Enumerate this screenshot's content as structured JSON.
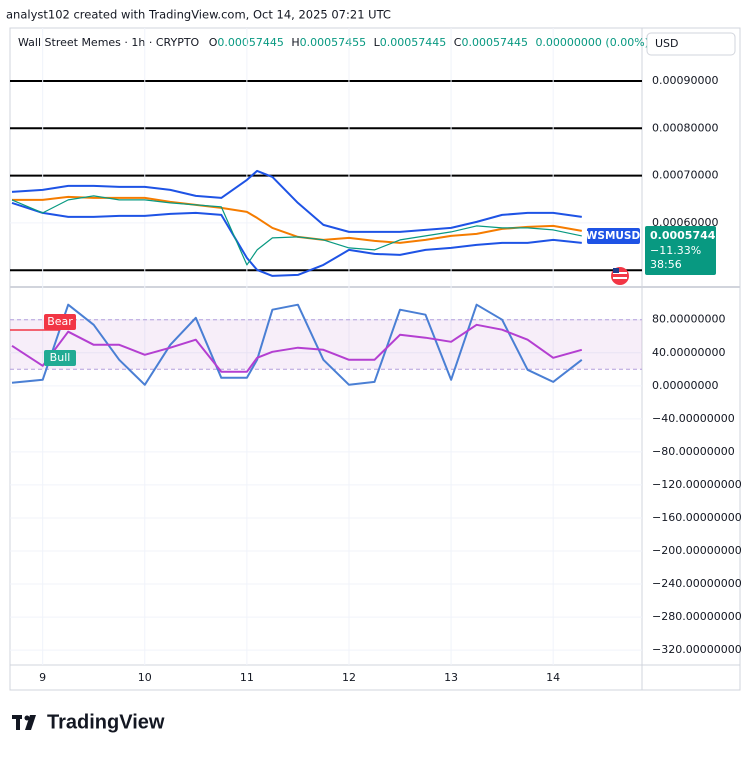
{
  "header": {
    "caption": "analyst102 created with TradingView.com, Oct 14, 2025 07:21 UTC",
    "symbol": "Wall Street Memes · 1h · CRYPTO",
    "ohlc": [
      {
        "label": "O",
        "value": "0.00057445"
      },
      {
        "label": "H",
        "value": "0.00057455"
      },
      {
        "label": "L",
        "value": "0.00057445"
      },
      {
        "label": "C",
        "value": "0.00057445"
      }
    ],
    "change": "0.00000000 (0.00%)",
    "currency": "USD"
  },
  "price_tag": {
    "symbol": "WSMUSD",
    "price": "0.00057445",
    "change": "−11.33%",
    "countdown": "38:56"
  },
  "chart_data": [
    {
      "type": "line",
      "xlim": [
        8.68,
        14.87
      ],
      "ylim": [
        0.000473,
        0.001012
      ],
      "yticks": [
        {
          "value": 0.0006,
          "label": "0.00060000"
        },
        {
          "value": 0.0007,
          "label": "0.00070000"
        },
        {
          "value": 0.0008,
          "label": "0.00080000"
        },
        {
          "value": 0.0009,
          "label": "0.00090000"
        }
      ],
      "levels": [
        0.0009,
        0.0008,
        0.0007,
        0.0005
      ],
      "grid": true,
      "x": [
        8.7,
        9,
        9.25,
        9.5,
        9.75,
        10,
        10.25,
        10.5,
        10.75,
        11,
        11.1,
        11.25,
        11.5,
        11.75,
        12,
        12.25,
        12.5,
        12.75,
        13,
        13.25,
        13.5,
        13.75,
        14,
        14.28
      ],
      "series": [
        {
          "color": "#1e53e5",
          "values": [
            0.00066553,
            0.00066976,
            0.00067822,
            0.00067822,
            0.0006761,
            0.0006761,
            0.00066976,
            0.00065708,
            0.00065285,
            0.0006909,
            0.00070993,
            0.00069724,
            0.00064228,
            0.00059577,
            0.00058097,
            0.00058097,
            0.00058097,
            0.0005852,
            0.00058943,
            0.00060211,
            0.00061691,
            0.00062114,
            0.00062114,
            0.00061268
          ]
        },
        {
          "color": "#f57c00",
          "values": [
            0.00064862,
            0.00064862,
            0.00065496,
            0.00065285,
            0.00065285,
            0.00065285,
            0.00064439,
            0.00063805,
            0.00063171,
            0.00062325,
            0.00061057,
            0.00058943,
            0.0005704,
            0.00056406,
            0.00056829,
            0.00056195,
            0.00055772,
            0.00056406,
            0.00057252,
            0.00057675,
            0.00058732,
            0.00059154,
            0.00059366,
            0.00058309
          ]
        },
        {
          "color": "#1e53e5",
          "values": [
            0.00064228,
            0.00062114,
            0.00061268,
            0.00061268,
            0.0006148,
            0.0006148,
            0.00061903,
            0.00062114,
            0.00061691,
            0.00052601,
            0.00050064,
            0.00048796,
            0.00049007,
            0.00051121,
            0.00054292,
            0.00053447,
            0.00053235,
            0.00054292,
            0.00054715,
            0.00055349,
            0.00055772,
            0.00055772,
            0.00056406,
            0.00055772
          ]
        },
        {
          "color": "#089981",
          "values": [
            0.00064862,
            0.00062114,
            0.00064862,
            0.00065708,
            0.00064862,
            0.00064862,
            0.00064228,
            0.00063805,
            0.00063382,
            0.00051121,
            0.00054292,
            0.00056829,
            0.0005704,
            0.00056406,
            0.00054715,
            0.00054292,
            0.00056406,
            0.00057252,
            0.00058097,
            0.00059366,
            0.00058943,
            0.00058943,
            0.0005852,
            0.00057252
          ]
        }
      ]
    },
    {
      "type": "line",
      "xlim": [
        8.68,
        14.87
      ],
      "ylim": [
        -338,
        116
      ],
      "xticks": [
        9,
        10,
        11,
        12,
        13,
        14
      ],
      "yticks": [
        {
          "value": 80,
          "label": "80.00000000"
        },
        {
          "value": 40,
          "label": "40.00000000"
        },
        {
          "value": 0,
          "label": "0.00000000"
        },
        {
          "value": -40,
          "label": "−40.00000000"
        },
        {
          "value": -80,
          "label": "−80.00000000"
        },
        {
          "value": -120,
          "label": "−120.00000000"
        },
        {
          "value": -160,
          "label": "−160.00000000"
        },
        {
          "value": -200,
          "label": "−200.00000000"
        },
        {
          "value": -240,
          "label": "−240.00000000"
        },
        {
          "value": -280,
          "label": "−280.00000000"
        },
        {
          "value": -320,
          "label": "−320.00000000"
        }
      ],
      "bands": [
        20,
        80
      ],
      "annotations": [
        "Bear",
        "Bull"
      ],
      "grid": true,
      "x": [
        8.7,
        9,
        9.25,
        9.5,
        9.75,
        10,
        10.25,
        10.5,
        10.75,
        11,
        11.1,
        11.25,
        11.5,
        11.75,
        12,
        12.25,
        12.5,
        12.75,
        13,
        13.25,
        13.5,
        13.75,
        14,
        14.28
      ],
      "series": [
        {
          "color": "#4a7fd4",
          "values": [
            3.6,
            7.3,
            98.2,
            73.9,
            31.5,
            1.2,
            49.7,
            82.4,
            9.7,
            9.7,
            31.5,
            92.1,
            98.2,
            31.5,
            1.2,
            4.8,
            92.1,
            86.1,
            7.3,
            98.2,
            80,
            19.4,
            4.8,
            31.5
          ]
        },
        {
          "color": "#b43fd1",
          "values": [
            48.5,
            24.2,
            65.5,
            49.7,
            49.7,
            37.6,
            46.1,
            55.8,
            17,
            17,
            33.9,
            41.2,
            46.1,
            43.6,
            31.5,
            31.5,
            61.8,
            58.2,
            53.3,
            73.9,
            67.9,
            55.8,
            33.9,
            43.6
          ]
        }
      ]
    }
  ],
  "footer": {
    "brand": "TradingView"
  }
}
